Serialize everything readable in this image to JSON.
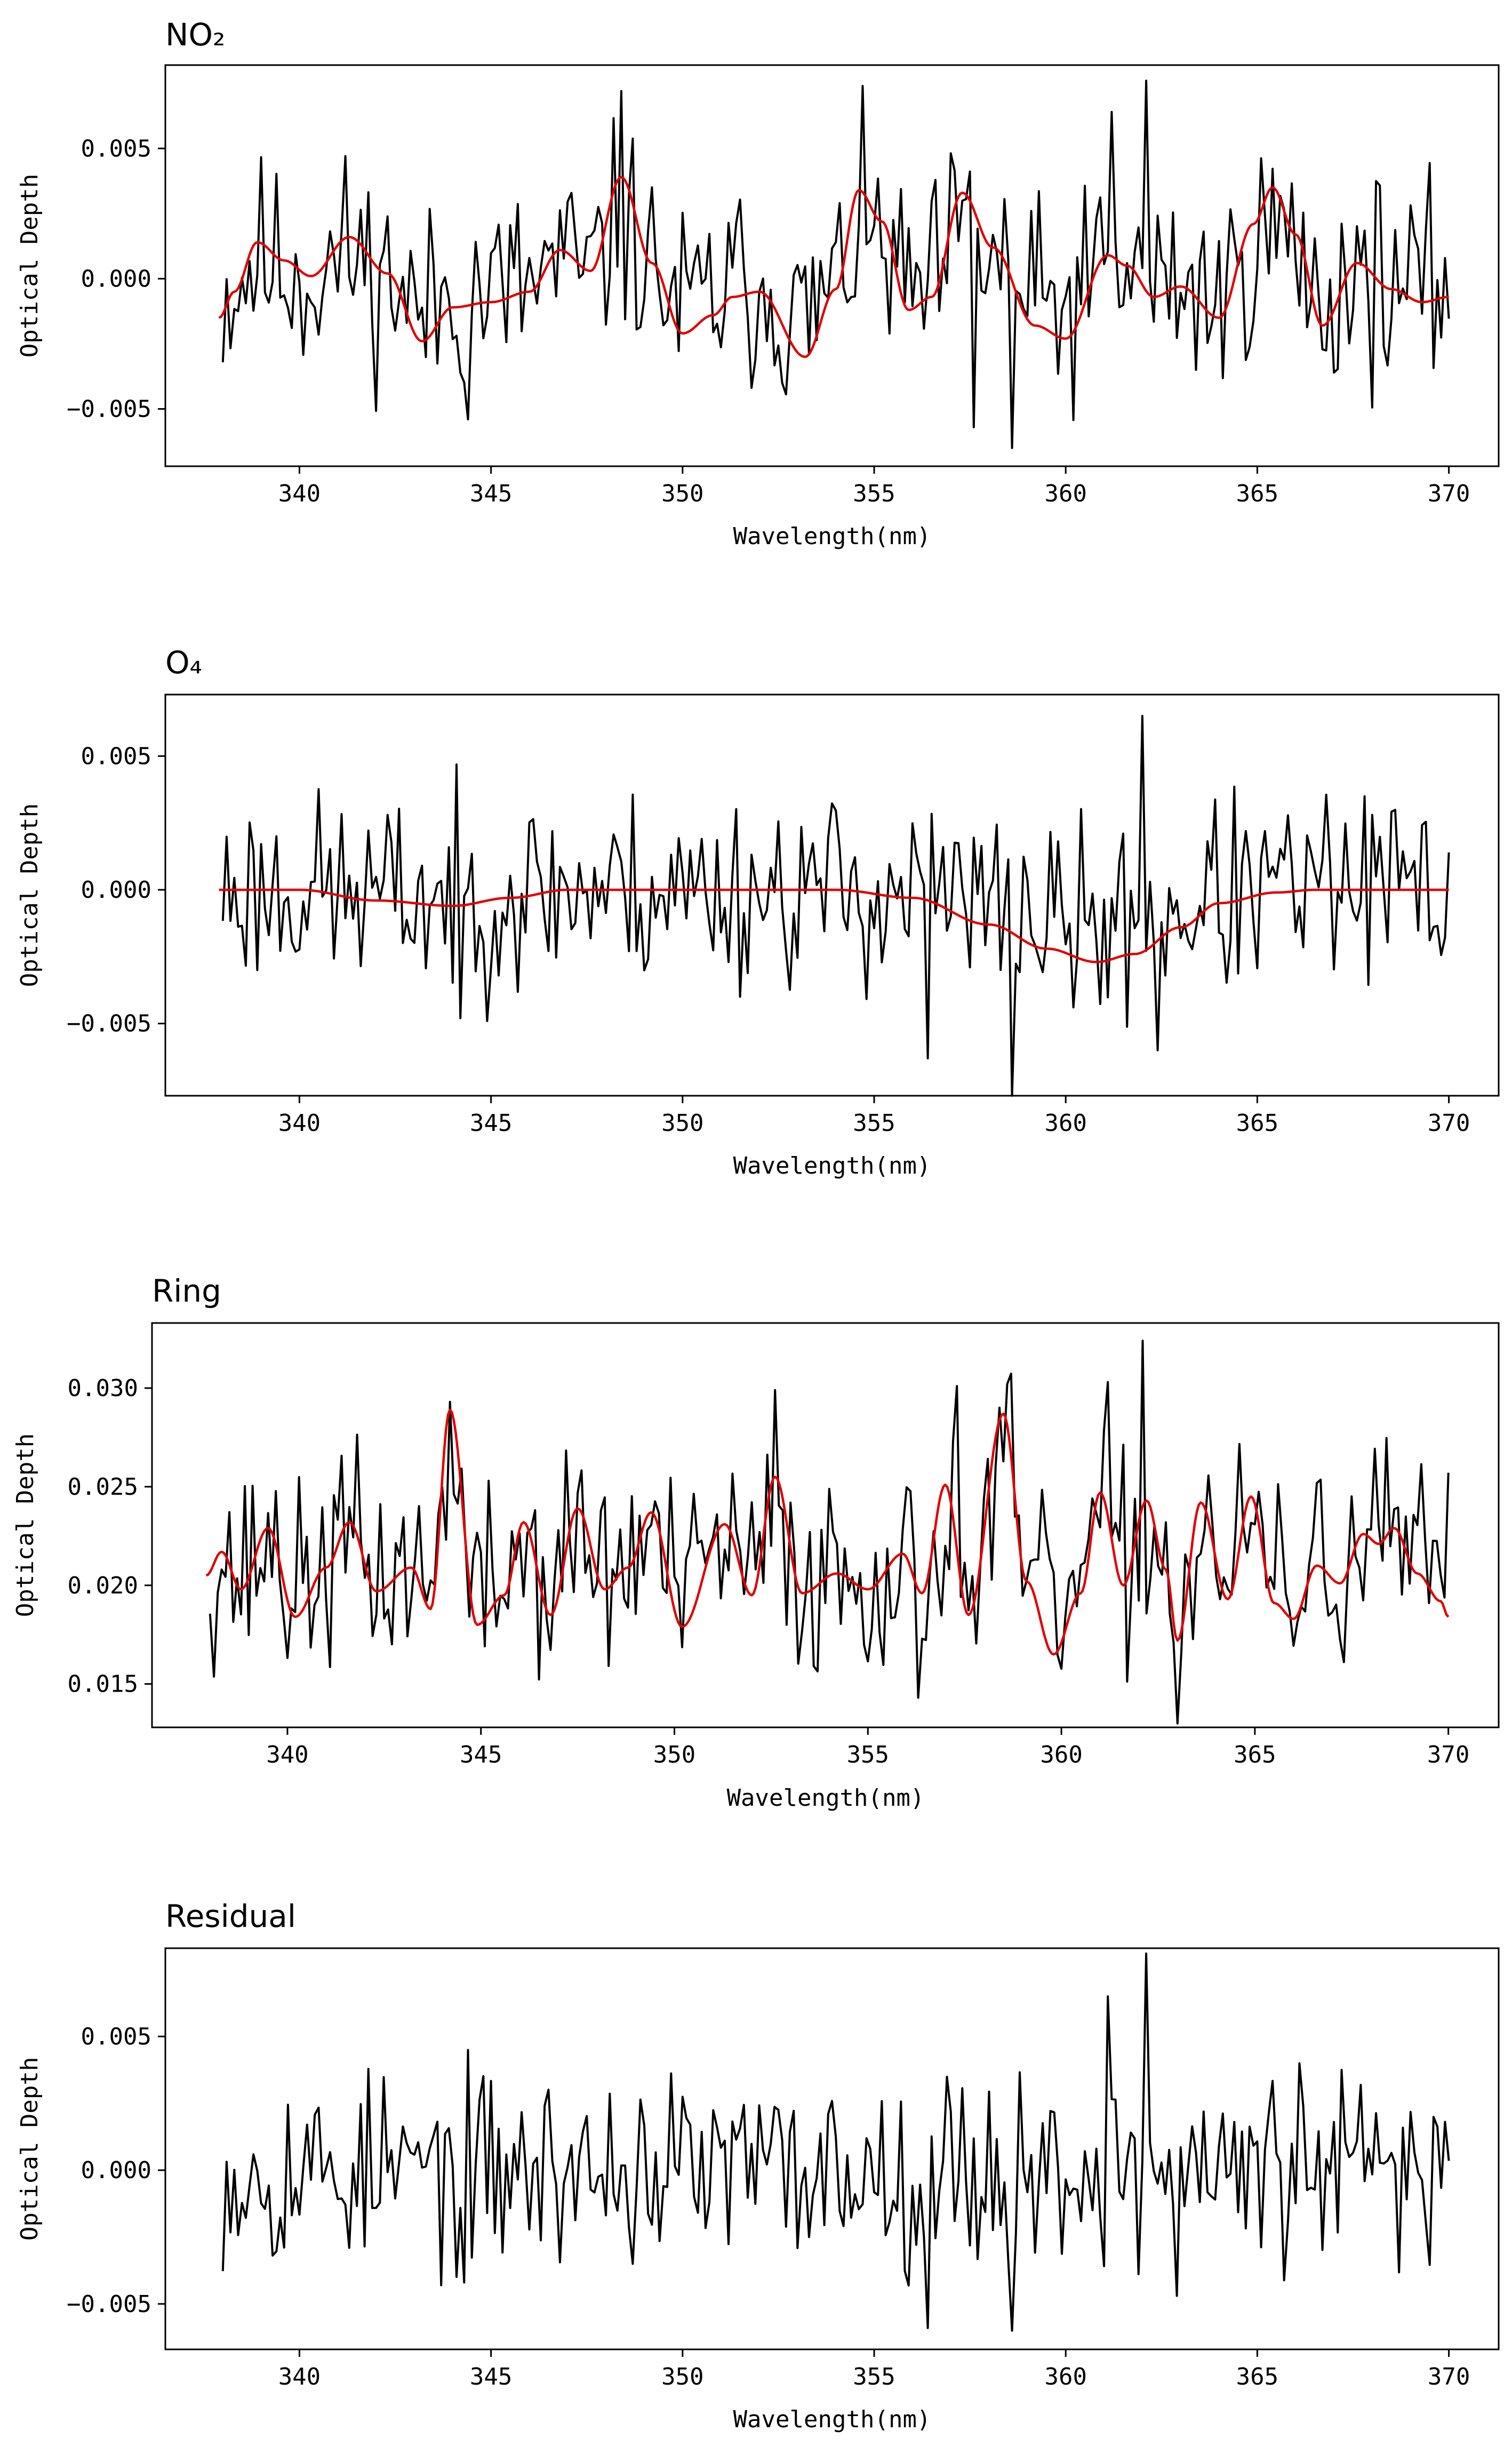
{
  "colors": {
    "observed": "#000000",
    "fit": "#e00000",
    "axes": "#000000"
  },
  "chart_data": [
    {
      "type": "line",
      "title": "NO₂",
      "xlabel": "Wavelength(nm)",
      "ylabel": "Optical Depth",
      "xlim": [
        336.5,
        371.3
      ],
      "ylim": [
        -0.0072,
        0.0082
      ],
      "xticks": [
        340,
        345,
        350,
        355,
        360,
        365,
        370
      ],
      "xtick_labels": [
        "340",
        "345",
        "350",
        "355",
        "360",
        "365",
        "370"
      ],
      "yticks": [
        -0.005,
        0.0,
        0.005
      ],
      "ytick_labels": [
        "−0.005",
        "0.000",
        "0.005"
      ],
      "series": [
        {
          "name": "observed",
          "color": "#000000",
          "seed": 11,
          "mean": 0.0,
          "amp": 0.0026,
          "peaks": [
            [
              348.4,
              0.0072
            ],
            [
              362.1,
              0.0076
            ],
            [
              361.2,
              0.0064
            ],
            [
              358.6,
              -0.0065
            ],
            [
              344.4,
              -0.0054
            ],
            [
              357.6,
              -0.0057
            ]
          ]
        },
        {
          "name": "fit",
          "color": "#e00000",
          "mean": 0.0,
          "anchors": [
            [
              337.9,
              -0.0015
            ],
            [
              338.3,
              -0.0005
            ],
            [
              338.9,
              0.0014
            ],
            [
              339.6,
              0.0007
            ],
            [
              340.3,
              0.0001
            ],
            [
              341.3,
              0.0016
            ],
            [
              342.3,
              0.0002
            ],
            [
              343.2,
              -0.0024
            ],
            [
              344.0,
              -0.0011
            ],
            [
              345.0,
              -0.0009
            ],
            [
              346.0,
              -0.0005
            ],
            [
              346.8,
              0.0011
            ],
            [
              347.6,
              0.0003
            ],
            [
              348.4,
              0.0039
            ],
            [
              349.2,
              0.0006
            ],
            [
              350.0,
              -0.0021
            ],
            [
              350.8,
              -0.0014
            ],
            [
              351.3,
              -0.0007
            ],
            [
              352.0,
              -0.0005
            ],
            [
              353.2,
              -0.003
            ],
            [
              354.0,
              -0.0004
            ],
            [
              354.6,
              0.0034
            ],
            [
              355.2,
              0.0022
            ],
            [
              355.9,
              -0.0012
            ],
            [
              356.5,
              -0.0007
            ],
            [
              357.3,
              0.0033
            ],
            [
              358.1,
              0.0012
            ],
            [
              359.2,
              -0.0018
            ],
            [
              360.0,
              -0.0023
            ],
            [
              361.1,
              0.0009
            ],
            [
              361.6,
              0.0005
            ],
            [
              362.3,
              -0.0007
            ],
            [
              363.0,
              -0.0003
            ],
            [
              364.0,
              -0.0015
            ],
            [
              364.9,
              0.0021
            ],
            [
              365.4,
              0.0035
            ],
            [
              366.0,
              0.0017
            ],
            [
              366.7,
              -0.0018
            ],
            [
              367.6,
              0.0006
            ],
            [
              368.5,
              -0.0004
            ],
            [
              369.3,
              -0.0009
            ],
            [
              370.0,
              -0.0007
            ]
          ]
        }
      ]
    },
    {
      "type": "line",
      "title": "O₄",
      "xlabel": "Wavelength(nm)",
      "ylabel": "Optical Depth",
      "xlim": [
        336.5,
        371.3
      ],
      "ylim": [
        -0.0077,
        0.0073
      ],
      "xticks": [
        340,
        345,
        350,
        355,
        360,
        365,
        370
      ],
      "xtick_labels": [
        "340",
        "345",
        "350",
        "355",
        "360",
        "365",
        "370"
      ],
      "yticks": [
        -0.005,
        0.0,
        0.005
      ],
      "ytick_labels": [
        "−0.005",
        "0.000",
        "0.005"
      ],
      "series": [
        {
          "name": "observed",
          "color": "#000000",
          "seed": 23,
          "mean": 0.0,
          "amp": 0.0024,
          "peaks": [
            [
              362.0,
              0.0065
            ],
            [
              362.4,
              -0.006
            ],
            [
              358.6,
              -0.0077
            ],
            [
              356.4,
              -0.0063
            ],
            [
              344.2,
              -0.0048
            ]
          ]
        },
        {
          "name": "fit",
          "color": "#e00000",
          "mean": 0.0,
          "anchors": [
            [
              337.9,
              0.0
            ],
            [
              340.0,
              0.0
            ],
            [
              342.0,
              -0.0004
            ],
            [
              344.0,
              -0.0006
            ],
            [
              345.5,
              -0.0003
            ],
            [
              347.0,
              0.0
            ],
            [
              354.0,
              0.0
            ],
            [
              356.0,
              -0.0003
            ],
            [
              358.0,
              -0.0013
            ],
            [
              359.5,
              -0.0022
            ],
            [
              360.8,
              -0.0027
            ],
            [
              361.8,
              -0.0024
            ],
            [
              363.0,
              -0.0014
            ],
            [
              364.0,
              -0.0005
            ],
            [
              365.5,
              -0.0001
            ],
            [
              366.5,
              0.0
            ],
            [
              370.0,
              0.0
            ]
          ]
        }
      ]
    },
    {
      "type": "line",
      "title": "Ring",
      "xlabel": "Wavelength(nm)",
      "ylabel": "Optical Depth",
      "xlim": [
        336.5,
        371.3
      ],
      "ylim": [
        0.0128,
        0.0333
      ],
      "xticks": [
        340,
        345,
        350,
        355,
        360,
        365,
        370
      ],
      "xtick_labels": [
        "340",
        "345",
        "350",
        "355",
        "360",
        "365",
        "370"
      ],
      "yticks": [
        0.015,
        0.02,
        0.025,
        0.03
      ],
      "ytick_labels": [
        "0.015",
        "0.020",
        "0.025",
        "0.030"
      ],
      "series": [
        {
          "name": "observed",
          "color": "#000000",
          "seed": 37,
          "mean": 0.0212,
          "amp": 0.0034,
          "peaks": [
            [
              344.2,
              0.0293
            ],
            [
              352.6,
              0.0299
            ],
            [
              357.3,
              0.0301
            ],
            [
              358.6,
              0.0302
            ],
            [
              361.2,
              0.0303
            ],
            [
              362.1,
              0.0324
            ],
            [
              363.0,
              0.013
            ],
            [
              356.3,
              0.0143
            ]
          ]
        },
        {
          "name": "fit",
          "color": "#e00000",
          "mean": 0.0212,
          "anchors": [
            [
              337.9,
              0.0205
            ],
            [
              338.3,
              0.0217
            ],
            [
              338.8,
              0.0198
            ],
            [
              339.5,
              0.0229
            ],
            [
              340.2,
              0.0184
            ],
            [
              341.0,
              0.0209
            ],
            [
              341.6,
              0.0232
            ],
            [
              342.3,
              0.0197
            ],
            [
              343.2,
              0.0209
            ],
            [
              343.7,
              0.0188
            ],
            [
              344.2,
              0.0289
            ],
            [
              344.9,
              0.018
            ],
            [
              345.6,
              0.0195
            ],
            [
              346.1,
              0.0232
            ],
            [
              346.8,
              0.0185
            ],
            [
              347.5,
              0.0239
            ],
            [
              348.2,
              0.0198
            ],
            [
              348.8,
              0.0209
            ],
            [
              349.4,
              0.0237
            ],
            [
              350.2,
              0.0179
            ],
            [
              351.3,
              0.0231
            ],
            [
              352.0,
              0.0195
            ],
            [
              352.6,
              0.0255
            ],
            [
              353.3,
              0.0196
            ],
            [
              354.2,
              0.0206
            ],
            [
              355.0,
              0.0198
            ],
            [
              355.9,
              0.0216
            ],
            [
              356.4,
              0.0196
            ],
            [
              357.0,
              0.0251
            ],
            [
              357.6,
              0.0185
            ],
            [
              358.5,
              0.0287
            ],
            [
              359.1,
              0.0202
            ],
            [
              359.8,
              0.0165
            ],
            [
              360.5,
              0.0196
            ],
            [
              361.0,
              0.0247
            ],
            [
              361.6,
              0.02
            ],
            [
              362.2,
              0.0243
            ],
            [
              362.7,
              0.0208
            ],
            [
              363.0,
              0.0172
            ],
            [
              363.6,
              0.0242
            ],
            [
              364.3,
              0.0193
            ],
            [
              364.9,
              0.0245
            ],
            [
              365.5,
              0.0191
            ],
            [
              366.0,
              0.0183
            ],
            [
              366.6,
              0.021
            ],
            [
              367.2,
              0.0201
            ],
            [
              367.8,
              0.0226
            ],
            [
              368.2,
              0.0221
            ],
            [
              368.6,
              0.0229
            ],
            [
              369.2,
              0.0206
            ],
            [
              369.8,
              0.0192
            ],
            [
              370.0,
              0.0184
            ]
          ]
        }
      ]
    },
    {
      "type": "line",
      "title": "Residual",
      "xlabel": "Wavelength(nm)",
      "ylabel": "Optical Depth",
      "xlim": [
        336.5,
        371.3
      ],
      "ylim": [
        -0.0067,
        0.0083
      ],
      "xticks": [
        340,
        345,
        350,
        355,
        360,
        365,
        370
      ],
      "xtick_labels": [
        "340",
        "345",
        "350",
        "355",
        "360",
        "365",
        "370"
      ],
      "yticks": [
        -0.005,
        0.0,
        0.005
      ],
      "ytick_labels": [
        "−0.005",
        "0.000",
        "0.005"
      ],
      "series": [
        {
          "name": "observed",
          "color": "#000000",
          "seed": 53,
          "mean": 0.0,
          "amp": 0.0024,
          "peaks": [
            [
              362.1,
              0.0081
            ],
            [
              361.1,
              0.0065
            ],
            [
              358.6,
              -0.006
            ],
            [
              356.4,
              -0.0059
            ],
            [
              362.9,
              -0.0047
            ],
            [
              344.3,
              -0.0042
            ]
          ]
        }
      ]
    }
  ]
}
